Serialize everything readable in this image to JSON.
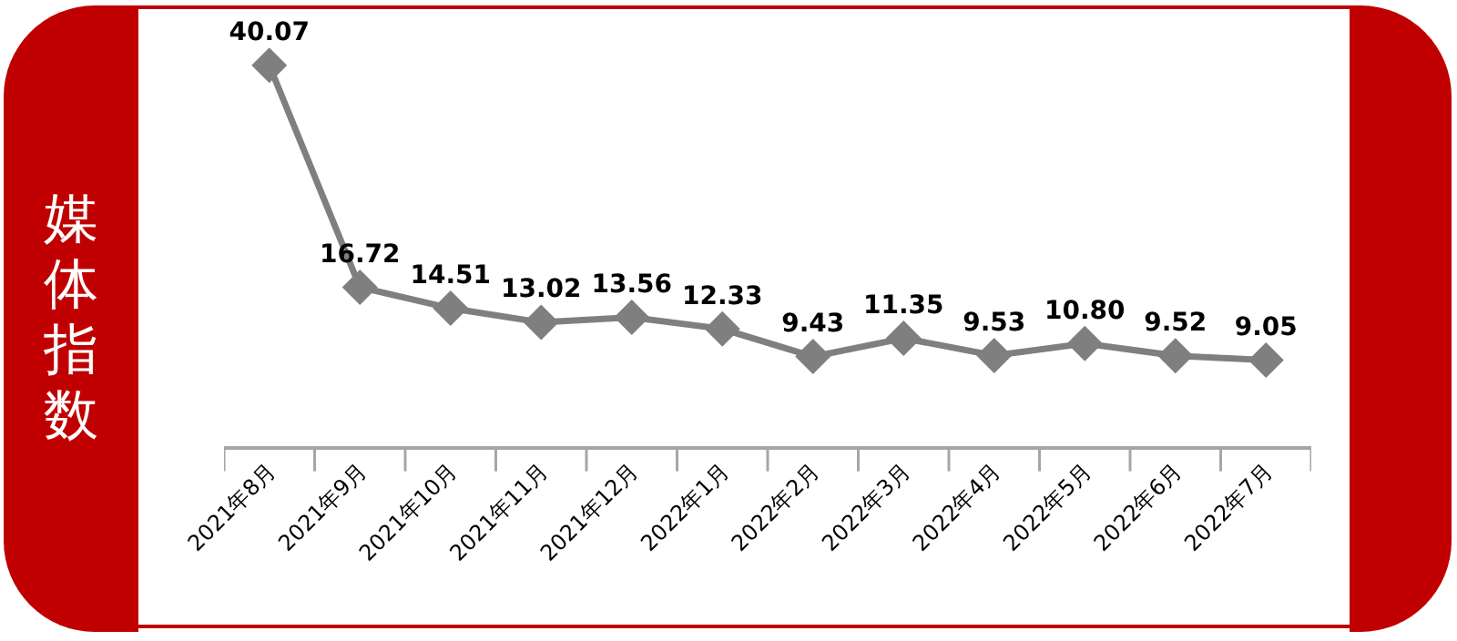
{
  "chart_data": {
    "type": "line",
    "ylabel": "媒体指数",
    "categories": [
      "2021年8月",
      "2021年9月",
      "2021年10月",
      "2021年11月",
      "2021年12月",
      "2022年1月",
      "2022年2月",
      "2022年3月",
      "2022年4月",
      "2022年5月",
      "2022年6月",
      "2022年7月"
    ],
    "series": [
      {
        "color": "#7f7f7f",
        "values": [
          40.07,
          16.72,
          14.51,
          13.02,
          13.56,
          12.33,
          9.43,
          11.35,
          9.53,
          10.8,
          9.52,
          9.05
        ],
        "value_labels": [
          "40.07",
          "16.72",
          "14.51",
          "13.02",
          "13.56",
          "12.33",
          "9.43",
          "11.35",
          "9.53",
          "10.80",
          "9.52",
          "9.05"
        ]
      }
    ],
    "marker": "diamond",
    "line_style": "solid",
    "grid": false,
    "tick_labels": "x"
  }
}
